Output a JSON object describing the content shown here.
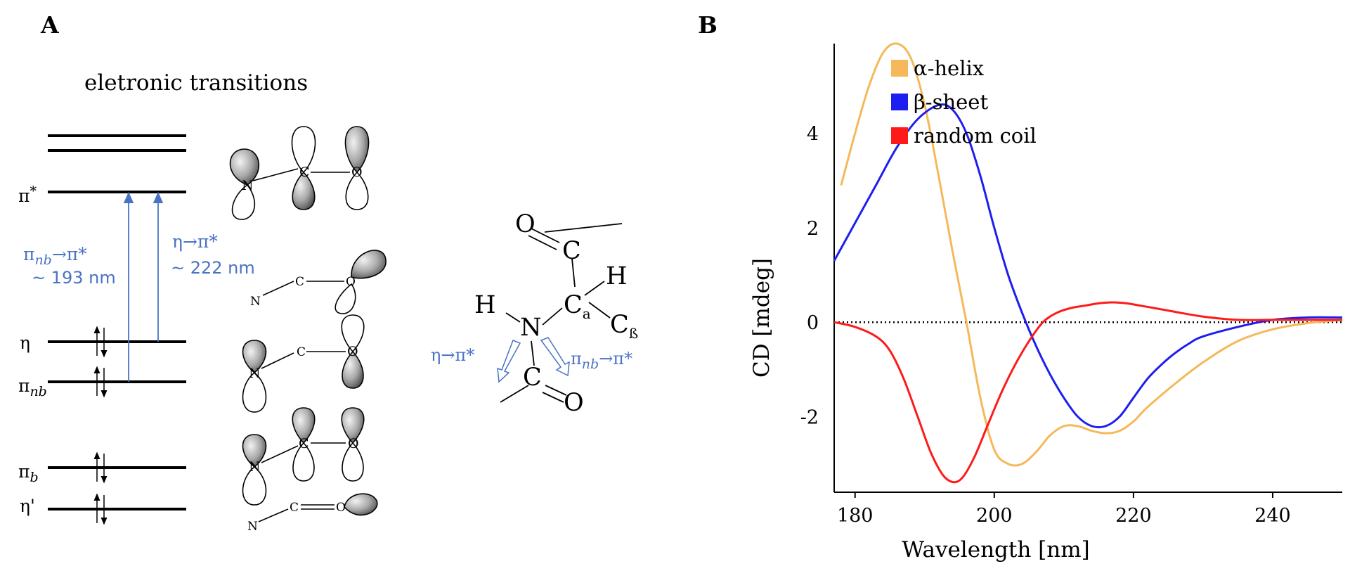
{
  "panel_a": {
    "panel_label": "A",
    "title": "eletronic transitions",
    "levels": [
      {
        "symbol": "π",
        "sup": "*",
        "sub": "",
        "electrons": false
      },
      {
        "symbol": "η",
        "sup": "",
        "sub": "",
        "electrons": true
      },
      {
        "symbol": "π",
        "sup": "",
        "sub": "nb",
        "electrons": true
      },
      {
        "symbol": "π",
        "sup": "",
        "sub": "b",
        "electrons": true
      },
      {
        "symbol": "η'",
        "sup": "",
        "sub": "",
        "electrons": true
      }
    ],
    "transitions": [
      {
        "label_main": "π",
        "label_sub": "nb",
        "label_arrow": "→π*",
        "wavelength": "~ 193 nm"
      },
      {
        "label_main": "η→π*",
        "wavelength": "~ 222 nm"
      }
    ],
    "orbital_atoms": {
      "n": "N",
      "c": "C",
      "o": "O"
    },
    "molecule": {
      "atoms": {
        "o_top": "O",
        "c_top": "C",
        "h_right": "H",
        "h_left": "H",
        "n": "N",
        "ca": "C",
        "ca_sub": "a",
        "cb": "C",
        "cb_sub": "ß",
        "c_bottom": "C",
        "o_bottom": "O"
      },
      "label_left": "η→π*",
      "label_right_main": "π",
      "label_right_sub": "nb",
      "label_right_arrow": "→π*"
    },
    "colors": {
      "annotation": "#4a72c4",
      "line": "#000000"
    }
  },
  "panel_b": {
    "panel_label": "B"
  },
  "chart_data": {
    "type": "line",
    "xlabel": "Wavelength [nm]",
    "ylabel": "CD [mdeg]",
    "xlim": [
      177,
      250
    ],
    "ylim": [
      -3.6,
      5.9
    ],
    "xticks": [
      180,
      200,
      220,
      240
    ],
    "yticks": [
      4,
      2,
      0,
      -2
    ],
    "zero_line": "dotted",
    "legend_position": "top-right",
    "series": [
      {
        "name": "α-helix",
        "color": "#f5b85a",
        "x": [
          178,
          180,
          182,
          184,
          186,
          188,
          190,
          192,
          194,
          196,
          198,
          200,
          202,
          204,
          206,
          208,
          210,
          212,
          214,
          216,
          218,
          220,
          222,
          226,
          230,
          235,
          240,
          245,
          250
        ],
        "y": [
          2.9,
          4.0,
          5.0,
          5.7,
          5.9,
          5.6,
          4.6,
          3.1,
          1.5,
          0.0,
          -1.6,
          -2.7,
          -3.0,
          -3.0,
          -2.75,
          -2.4,
          -2.2,
          -2.2,
          -2.3,
          -2.35,
          -2.3,
          -2.1,
          -1.8,
          -1.3,
          -0.85,
          -0.4,
          -0.15,
          -0.02,
          0.05
        ]
      },
      {
        "name": "β-sheet",
        "color": "#1d1ef0",
        "x": [
          177,
          180,
          183,
          186,
          189,
          192,
          194,
          196,
          198,
          200,
          202,
          204,
          206,
          208,
          210,
          212,
          214,
          216,
          218,
          220,
          222,
          224,
          226,
          228,
          230,
          235,
          240,
          245,
          250
        ],
        "y": [
          1.3,
          2.1,
          2.9,
          3.7,
          4.3,
          4.6,
          4.5,
          4.0,
          3.1,
          2.0,
          1.0,
          0.2,
          -0.5,
          -1.1,
          -1.6,
          -2.0,
          -2.2,
          -2.2,
          -2.0,
          -1.6,
          -1.2,
          -0.9,
          -0.65,
          -0.45,
          -0.3,
          -0.1,
          0.05,
          0.1,
          0.1
        ]
      },
      {
        "name": "random coil",
        "color": "#ff1a1a",
        "x": [
          177,
          180,
          183,
          185,
          187,
          189,
          191,
          193,
          195,
          197,
          199,
          201,
          203,
          205,
          207,
          209,
          211,
          213,
          215,
          217,
          219,
          221,
          223,
          226,
          230,
          235,
          240,
          245,
          250
        ],
        "y": [
          0.0,
          -0.1,
          -0.3,
          -0.6,
          -1.2,
          -2.0,
          -2.8,
          -3.3,
          -3.35,
          -2.9,
          -2.2,
          -1.5,
          -0.9,
          -0.4,
          0.0,
          0.2,
          0.3,
          0.35,
          0.4,
          0.42,
          0.4,
          0.35,
          0.3,
          0.22,
          0.12,
          0.05,
          0.05,
          0.05,
          0.05
        ]
      }
    ]
  }
}
